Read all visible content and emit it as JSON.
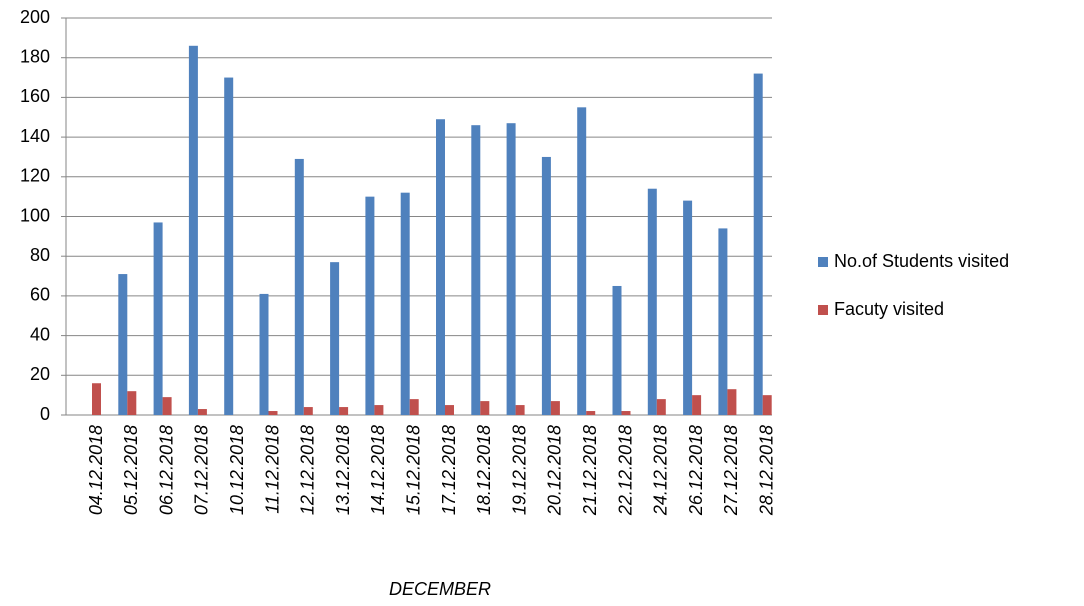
{
  "chart_data": {
    "type": "bar",
    "x_label": "DECEMBER",
    "categories": [
      "04.12.2018",
      "05.12.2018",
      "06.12.2018",
      "07.12.2018",
      "10.12.2018",
      "11.12.2018",
      "12.12.2018",
      "13.12.2018",
      "14.12.2018",
      "15.12.2018",
      "17.12.2018",
      "18.12.2018",
      "19.12.2018",
      "20.12.2018",
      "21.12.2018",
      "22.12.2018",
      "24.12.2018",
      "26.12.2018",
      "27.12.2018",
      "28.12.2018"
    ],
    "series": [
      {
        "name": "No.of Students visited",
        "color": "#4f81bd",
        "values": [
          0,
          71,
          97,
          186,
          170,
          61,
          129,
          77,
          110,
          112,
          149,
          146,
          147,
          130,
          155,
          65,
          114,
          108,
          94,
          172
        ]
      },
      {
        "name": "Facuty visited",
        "color": "#c0504d",
        "values": [
          16,
          12,
          9,
          3,
          0,
          2,
          4,
          4,
          5,
          8,
          5,
          7,
          5,
          7,
          2,
          2,
          8,
          10,
          13,
          10
        ]
      }
    ],
    "ylim": [
      0,
      200
    ],
    "yticks": [
      0,
      20,
      40,
      60,
      80,
      100,
      120,
      140,
      160,
      180,
      200
    ],
    "grid": true,
    "legend": "right"
  }
}
